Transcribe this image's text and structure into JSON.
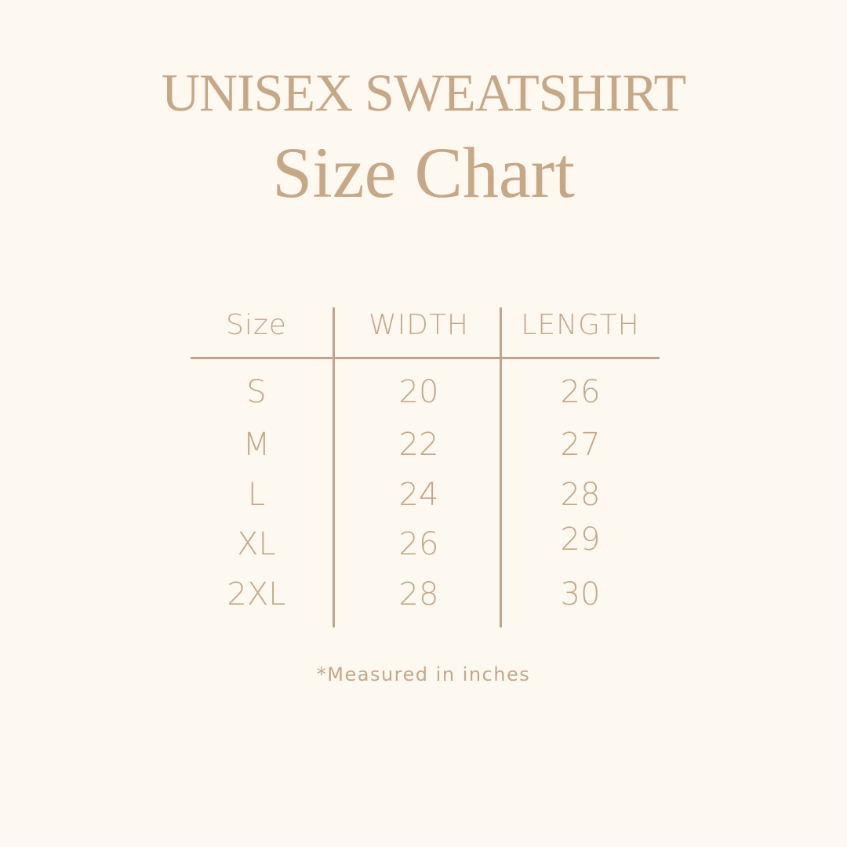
{
  "title": "UNISEX SWEATSHIRT",
  "subtitle": "Size Chart",
  "table": {
    "headers": [
      "Size",
      "WIDTH",
      "LENGTH"
    ],
    "rows": [
      [
        "S",
        "20",
        "26"
      ],
      [
        "M",
        "22",
        "27"
      ],
      [
        "L",
        "24",
        "28"
      ],
      [
        "XL",
        "26",
        "29"
      ],
      [
        "2XL",
        "28",
        "30"
      ]
    ]
  },
  "footnote": "*Measured in inches",
  "colors": {
    "background": "#fdf8f0",
    "text": "#c4a886",
    "lines": "#bfa58e"
  }
}
